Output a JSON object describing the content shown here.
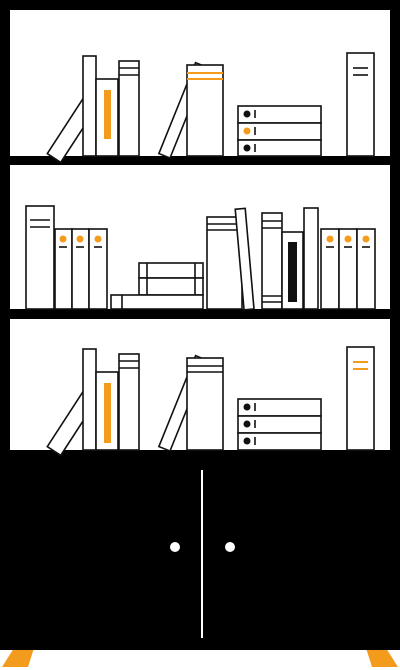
{
  "illustration": {
    "subject": "bookshelf-cabinet",
    "shelf_count": 3,
    "cabinet_door_count": 2
  },
  "colors": {
    "frame": "#000000",
    "book_fill": "#ffffff",
    "book_line": "#111111",
    "accent": "#f29b1d"
  }
}
